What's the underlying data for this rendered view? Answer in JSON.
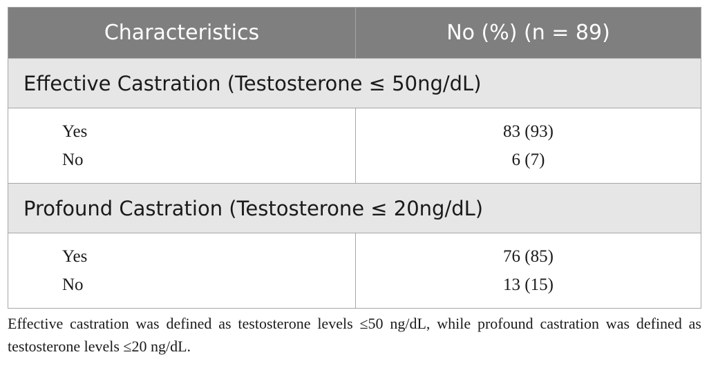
{
  "table": {
    "header": {
      "col1": "Characteristics",
      "col2": "No (%) (n = 89)"
    },
    "sections": [
      {
        "title": "Effective Castration (Testosterone ≤ 50ng/dL)",
        "rows": [
          {
            "label": "Yes",
            "value": "83 (93)"
          },
          {
            "label": "No",
            "value": "6 (7)"
          }
        ]
      },
      {
        "title": "Profound Castration (Testosterone ≤ 20ng/dL)",
        "rows": [
          {
            "label": "Yes",
            "value": "76 (85)"
          },
          {
            "label": "No",
            "value": "13 (15)"
          }
        ]
      }
    ]
  },
  "footnote": "Effective castration was defined as testosterone levels ≤50 ng/dL, while profound castration was defined as testosterone levels ≤20 ng/dL."
}
